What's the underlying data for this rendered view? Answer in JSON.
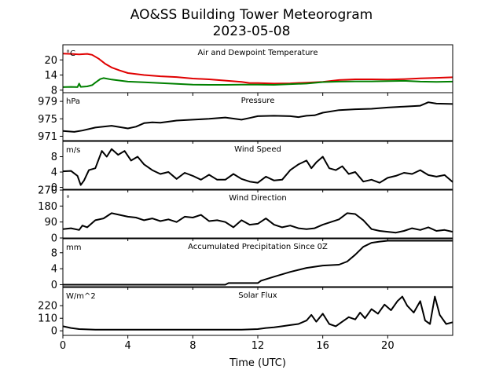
{
  "figure": {
    "title_line1": "AO&SS Building Tower Meteorogram",
    "title_line2": "2023-05-08",
    "xlabel": "Time (UTC)"
  },
  "chart_data": {
    "type": "line",
    "x_ticks": [
      0,
      4,
      8,
      12,
      16,
      20
    ],
    "xlim": [
      0,
      24
    ],
    "panels": [
      {
        "id": "temperature",
        "title": "Air and Dewpoint Temperature",
        "unit": "°C",
        "ylim": [
          7,
          26
        ],
        "yticks": [
          8,
          14,
          20
        ],
        "series": [
          {
            "name": "",
            "color": "#e00000",
            "x": [
              0,
              0.5,
              1,
              1.5,
              1.8,
              2.2,
              2.6,
              3,
              3.5,
              4,
              5,
              6,
              7,
              8,
              9,
              10,
              11,
              11.5,
              12,
              13,
              14,
              15,
              16,
              17,
              18,
              19,
              20,
              21,
              22,
              23,
              24
            ],
            "y": [
              22.5,
              22.4,
              22.2,
              22.4,
              22,
              20.5,
              18.5,
              17,
              15.8,
              14.8,
              14,
              13.5,
              13.2,
              12.6,
              12.3,
              11.8,
              11.3,
              10.8,
              10.8,
              10.6,
              10.7,
              11,
              11.3,
              12,
              12.3,
              12.3,
              12.2,
              12.4,
              12.7,
              12.9,
              13.1
            ]
          },
          {
            "name": "",
            "color": "#008000",
            "x": [
              0,
              0.5,
              0.9,
              1,
              1.1,
              1.5,
              1.8,
              2,
              2.3,
              2.5,
              3,
              4,
              5,
              6,
              7,
              8,
              9,
              10,
              11,
              12,
              13,
              14,
              15,
              16,
              17,
              18,
              19,
              20,
              21,
              22,
              23,
              24
            ],
            "y": [
              9.2,
              9.3,
              9.2,
              10.6,
              9.3,
              9.5,
              10,
              11,
              12.4,
              12.8,
              12.2,
              11.4,
              11.1,
              10.8,
              10.5,
              10.2,
              10.1,
              10.1,
              10.2,
              10.2,
              10.1,
              10.4,
              10.6,
              11.2,
              11.4,
              11.5,
              11.5,
              11.6,
              11.7,
              11.4,
              11.3,
              11.4
            ]
          }
        ]
      },
      {
        "id": "pressure",
        "title": "Pressure",
        "unit": "hPa",
        "ylim": [
          970,
          981
        ],
        "yticks": [
          971,
          975,
          979
        ],
        "series": [
          {
            "name": "",
            "color": "#000000",
            "x": [
              0,
              0.7,
              1.2,
              2,
              3,
              4,
              4.5,
              5,
              5.5,
              6,
              7,
              8,
              9,
              10,
              11,
              11.5,
              12,
              13,
              14,
              14.5,
              15,
              15.5,
              16,
              17,
              18,
              19,
              20,
              21,
              22,
              22.5,
              23,
              24
            ],
            "y": [
              972.2,
              972,
              972.3,
              973,
              973.4,
              972.8,
              973.2,
              974,
              974.2,
              974.1,
              974.6,
              974.8,
              975,
              975.3,
              974.8,
              975.2,
              975.6,
              975.7,
              975.6,
              975.4,
              975.7,
              975.8,
              976.4,
              977,
              977.2,
              977.3,
              977.6,
              977.8,
              978,
              978.8,
              978.5,
              978.4
            ]
          }
        ]
      },
      {
        "id": "wind_speed",
        "title": "Wind Speed",
        "unit": "m/s",
        "ylim": [
          -0.5,
          12
        ],
        "yticks": [
          0,
          4,
          8
        ],
        "series": [
          {
            "name": "",
            "color": "#000000",
            "x": [
              0,
              0.5,
              0.9,
              1.1,
              1.3,
              1.6,
              2,
              2.4,
              2.7,
              3,
              3.4,
              3.8,
              4.2,
              4.6,
              5,
              5.5,
              6,
              6.5,
              7,
              7.5,
              8,
              8.5,
              9,
              9.5,
              10,
              10.5,
              11,
              11.5,
              12,
              12.5,
              13,
              13.5,
              14,
              14.5,
              15,
              15.3,
              15.6,
              16,
              16.4,
              16.8,
              17.2,
              17.6,
              18,
              18.5,
              19,
              19.5,
              20,
              20.5,
              21,
              21.5,
              22,
              22.5,
              23,
              23.5,
              24
            ],
            "y": [
              4.2,
              4.3,
              3,
              0.6,
              1.8,
              4.5,
              5,
              9.5,
              8,
              10,
              8.5,
              9.5,
              7,
              8,
              6,
              4.5,
              3.5,
              4,
              2.2,
              3.8,
              3,
              2,
              3.3,
              2,
              2,
              3.5,
              2.2,
              1.5,
              1.2,
              2.8,
              1.8,
              2,
              4.5,
              6,
              7,
              5,
              6.5,
              8,
              5,
              4.5,
              5.5,
              3.5,
              4,
              1.5,
              2,
              1.2,
              2.5,
              3,
              3.8,
              3.5,
              4.5,
              3.2,
              2.8,
              3.2,
              1.4
            ]
          }
        ]
      },
      {
        "id": "wind_direction",
        "title": "Wind Direction",
        "unit": "°",
        "ylim": [
          0,
          270
        ],
        "yticks": [
          0,
          90,
          180,
          270
        ],
        "series": [
          {
            "name": "",
            "color": "#000000",
            "x": [
              0,
              0.5,
              1,
              1.2,
              1.5,
              2,
              2.5,
              3,
              3.5,
              4,
              4.5,
              5,
              5.5,
              6,
              6.5,
              7,
              7.5,
              8,
              8.5,
              9,
              9.5,
              10,
              10.5,
              11,
              11.5,
              12,
              12.5,
              13,
              13.5,
              14,
              14.5,
              15,
              15.5,
              16,
              16.5,
              17,
              17.5,
              18,
              18.5,
              19,
              19.5,
              20,
              20.5,
              21,
              21.5,
              22,
              22.5,
              23,
              23.5,
              24
            ],
            "y": [
              50,
              55,
              45,
              70,
              60,
              100,
              110,
              140,
              130,
              120,
              115,
              100,
              110,
              95,
              105,
              90,
              120,
              115,
              130,
              95,
              100,
              90,
              60,
              100,
              75,
              80,
              110,
              75,
              60,
              70,
              55,
              50,
              55,
              75,
              90,
              105,
              140,
              135,
              100,
              50,
              40,
              35,
              30,
              40,
              55,
              45,
              60,
              40,
              45,
              35
            ]
          }
        ]
      },
      {
        "id": "precipitation",
        "title": "Accumulated Precipitation Since 0Z",
        "unit": "mm",
        "ylim": [
          -0.5,
          11.5
        ],
        "yticks": [
          0,
          4,
          8
        ],
        "series": [
          {
            "name": "",
            "color": "#000000",
            "x": [
              0,
              10,
              10.2,
              12,
              12.2,
              13,
              14,
              15,
              16,
              17,
              17.5,
              18,
              18.5,
              19,
              19.5,
              20,
              24
            ],
            "y": [
              0,
              0,
              0.4,
              0.4,
              1,
              2,
              3.2,
              4.2,
              4.8,
              5,
              5.8,
              7.5,
              9.5,
              10.5,
              10.8,
              11,
              11
            ]
          }
        ]
      },
      {
        "id": "solar_flux",
        "title": "Solar Flux",
        "unit": "W/m^2",
        "ylim": [
          -40,
          380
        ],
        "yticks": [
          0,
          110,
          220
        ],
        "series": [
          {
            "name": "",
            "color": "#000000",
            "x": [
              0,
              0.5,
              1,
              2,
              4,
              6,
              8,
              10,
              11,
              11.5,
              12,
              12.5,
              13,
              13.5,
              14,
              14.5,
              15,
              15.3,
              15.6,
              16,
              16.4,
              16.8,
              17.2,
              17.6,
              18,
              18.3,
              18.6,
              19,
              19.4,
              19.8,
              20.2,
              20.6,
              20.9,
              21.2,
              21.6,
              22,
              22.3,
              22.6,
              22.9,
              23.2,
              23.6,
              24
            ],
            "y": [
              40,
              25,
              15,
              10,
              10,
              10,
              10,
              10,
              10,
              12,
              15,
              25,
              30,
              40,
              50,
              60,
              90,
              140,
              80,
              150,
              60,
              40,
              80,
              120,
              100,
              160,
              110,
              190,
              150,
              230,
              180,
              260,
              300,
              220,
              160,
              260,
              90,
              60,
              300,
              140,
              60,
              75
            ]
          }
        ]
      }
    ]
  }
}
